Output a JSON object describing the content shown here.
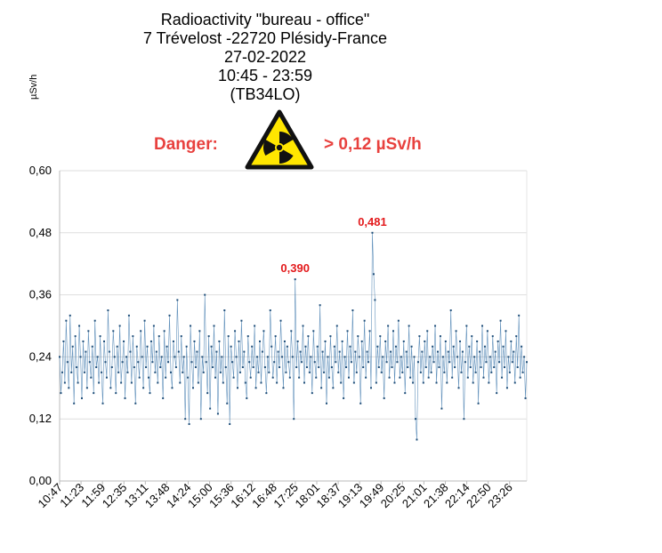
{
  "header": {
    "title_lines": [
      "Radioactivity \"bureau - office\"",
      "7 Trévelost -22720 Plésidy-France",
      "27-02-2022",
      "10:45 - 23:59",
      "(TB34LO)"
    ],
    "unit_label": "µSv/h",
    "danger_label": "Danger:",
    "threshold_label": "> 0,12 µSv/h",
    "hazard_icon": "radiation-warning-icon"
  },
  "colors": {
    "series": "#2f6ea5",
    "marker": "#1f4e79",
    "annotation": "#e31a1c",
    "danger": "#e8413e",
    "hazard_fill": "#ffe600"
  },
  "chart_data": {
    "type": "line",
    "title": "Radioactivity \"bureau - office\"",
    "ylabel": "µSv/h",
    "ylim": [
      0,
      0.6
    ],
    "yticks": [
      "0,00",
      "0,12",
      "0,24",
      "0,36",
      "0,48",
      "0,60"
    ],
    "xticks": [
      "10:47",
      "11:23",
      "11:59",
      "12:35",
      "13:11",
      "13:48",
      "14:24",
      "15:00",
      "15:36",
      "16:12",
      "16:48",
      "17:25",
      "18:01",
      "18:37",
      "19:13",
      "19:49",
      "20:25",
      "21:01",
      "21:38",
      "22:14",
      "22:50",
      "23:26"
    ],
    "grid": true,
    "annotations": [
      {
        "label": "0,390",
        "x": "16:55",
        "y": 0.39
      },
      {
        "label": "0,481",
        "x": "19:17",
        "y": 0.481
      }
    ],
    "series": [
      {
        "values": [
          0.24,
          0.17,
          0.21,
          0.27,
          0.19,
          0.31,
          0.23,
          0.18,
          0.32,
          0.21,
          0.26,
          0.15,
          0.28,
          0.22,
          0.19,
          0.3,
          0.24,
          0.16,
          0.27,
          0.21,
          0.25,
          0.18,
          0.29,
          0.23,
          0.2,
          0.26,
          0.17,
          0.31,
          0.22,
          0.24,
          0.19,
          0.28,
          0.21,
          0.15,
          0.27,
          0.23,
          0.2,
          0.33,
          0.25,
          0.18,
          0.22,
          0.29,
          0.24,
          0.17,
          0.26,
          0.21,
          0.3,
          0.19,
          0.23,
          0.27,
          0.16,
          0.24,
          0.21,
          0.32,
          0.25,
          0.19,
          0.28,
          0.22,
          0.15,
          0.26,
          0.23,
          0.2,
          0.29,
          0.24,
          0.18,
          0.31,
          0.22,
          0.26,
          0.2,
          0.17,
          0.27,
          0.23,
          0.3,
          0.21,
          0.25,
          0.19,
          0.28,
          0.22,
          0.24,
          0.16,
          0.29,
          0.2,
          0.26,
          0.23,
          0.32,
          0.21,
          0.18,
          0.27,
          0.24,
          0.22,
          0.35,
          0.25,
          0.19,
          0.28,
          0.21,
          0.24,
          0.12,
          0.26,
          0.2,
          0.11,
          0.3,
          0.23,
          0.18,
          0.27,
          0.22,
          0.25,
          0.19,
          0.29,
          0.12,
          0.24,
          0.21,
          0.36,
          0.23,
          0.17,
          0.28,
          0.14,
          0.26,
          0.22,
          0.3,
          0.2,
          0.25,
          0.13,
          0.27,
          0.21,
          0.24,
          0.19,
          0.33,
          0.22,
          0.15,
          0.28,
          0.11,
          0.26,
          0.23,
          0.2,
          0.29,
          0.24,
          0.18,
          0.27,
          0.21,
          0.31,
          0.22,
          0.25,
          0.19,
          0.16,
          0.28,
          0.23,
          0.2,
          0.26,
          0.22,
          0.3,
          0.18,
          0.24,
          0.21,
          0.27,
          0.19,
          0.25,
          0.29,
          0.22,
          0.17,
          0.24,
          0.21,
          0.33,
          0.26,
          0.2,
          0.23,
          0.28,
          0.19,
          0.25,
          0.22,
          0.31,
          0.24,
          0.18,
          0.27,
          0.21,
          0.26,
          0.23,
          0.2,
          0.29,
          0.24,
          0.12,
          0.39,
          0.22,
          0.27,
          0.2,
          0.25,
          0.23,
          0.3,
          0.19,
          0.26,
          0.22,
          0.28,
          0.21,
          0.24,
          0.17,
          0.29,
          0.23,
          0.2,
          0.26,
          0.22,
          0.34,
          0.18,
          0.25,
          0.21,
          0.27,
          0.15,
          0.24,
          0.2,
          0.28,
          0.22,
          0.18,
          0.26,
          0.23,
          0.3,
          0.21,
          0.25,
          0.19,
          0.27,
          0.16,
          0.24,
          0.22,
          0.29,
          0.2,
          0.26,
          0.23,
          0.33,
          0.19,
          0.25,
          0.21,
          0.28,
          0.24,
          0.15,
          0.27,
          0.22,
          0.31,
          0.2,
          0.25,
          0.23,
          0.29,
          0.18,
          0.48,
          0.4,
          0.35,
          0.19,
          0.26,
          0.22,
          0.28,
          0.21,
          0.24,
          0.16,
          0.27,
          0.23,
          0.3,
          0.2,
          0.25,
          0.22,
          0.29,
          0.19,
          0.26,
          0.23,
          0.31,
          0.2,
          0.24,
          0.21,
          0.27,
          0.17,
          0.25,
          0.22,
          0.3,
          0.2,
          0.26,
          0.19,
          0.24,
          0.12,
          0.08,
          0.23,
          0.28,
          0.21,
          0.25,
          0.19,
          0.27,
          0.22,
          0.29,
          0.2,
          0.24,
          0.21,
          0.26,
          0.23,
          0.3,
          0.19,
          0.25,
          0.22,
          0.28,
          0.14,
          0.24,
          0.21,
          0.27,
          0.19,
          0.25,
          0.23,
          0.33,
          0.2,
          0.26,
          0.22,
          0.29,
          0.24,
          0.18,
          0.27,
          0.21,
          0.25,
          0.12,
          0.23,
          0.3,
          0.2,
          0.26,
          0.22,
          0.28,
          0.19,
          0.24,
          0.21,
          0.27,
          0.15,
          0.25,
          0.22,
          0.3,
          0.2,
          0.26,
          0.23,
          0.29,
          0.19,
          0.24,
          0.21,
          0.28,
          0.22,
          0.25,
          0.17,
          0.27,
          0.23,
          0.31,
          0.2,
          0.26,
          0.22,
          0.29,
          0.18,
          0.24,
          0.21,
          0.27,
          0.23,
          0.25,
          0.19,
          0.28,
          0.22,
          0.32,
          0.2,
          0.26,
          0.21,
          0.24,
          0.16,
          0.23
        ]
      }
    ]
  }
}
